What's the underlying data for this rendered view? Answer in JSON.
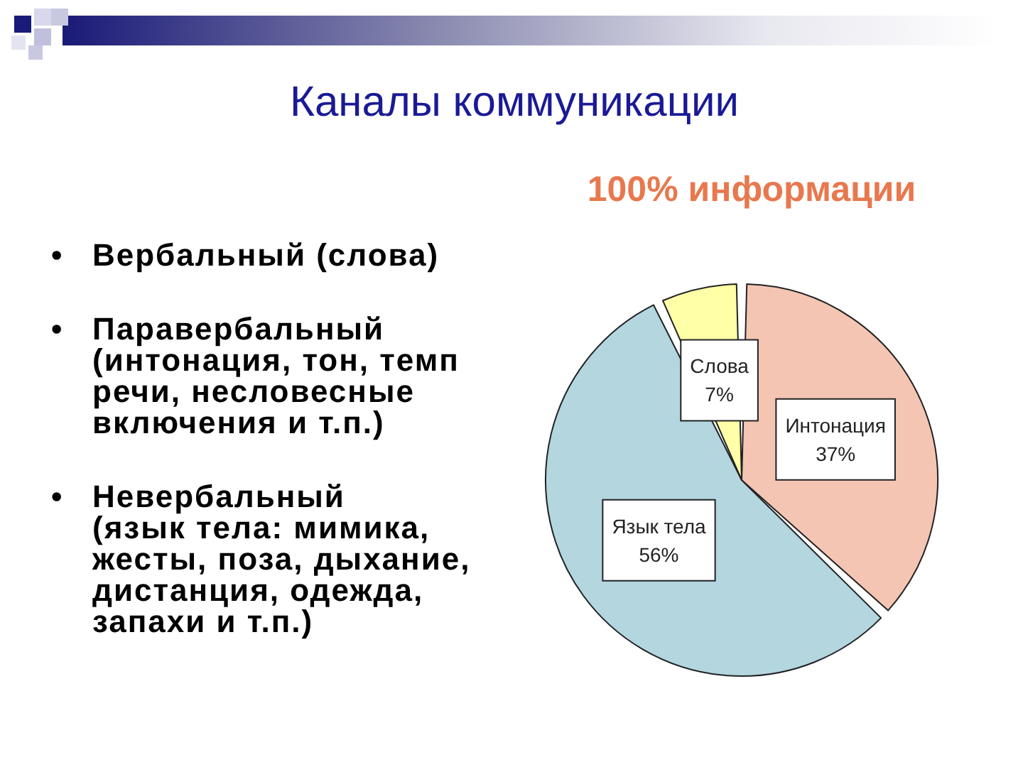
{
  "chart_data": {
    "type": "pie",
    "title": "Каналы коммуникации",
    "subtitle": "100% информации",
    "categories": [
      "Интонация",
      "Язык тела",
      "Слова"
    ],
    "values": [
      37,
      56,
      7
    ],
    "colors": [
      "#f5c5b4",
      "#b3d6df",
      "#ffffa8"
    ],
    "value_labels": [
      "37%",
      "56%",
      "7%"
    ],
    "annotations": [
      "• Вербальный (слова)",
      "• Паравербальный\n(интонация, тон, темп речи, несловесные включения и т.п.)",
      "• Невербальный\n(язык тела: мимика, жесты, поза, дыхание, дистанция, одежда, запахи и т.п.)"
    ],
    "legend": false
  }
}
